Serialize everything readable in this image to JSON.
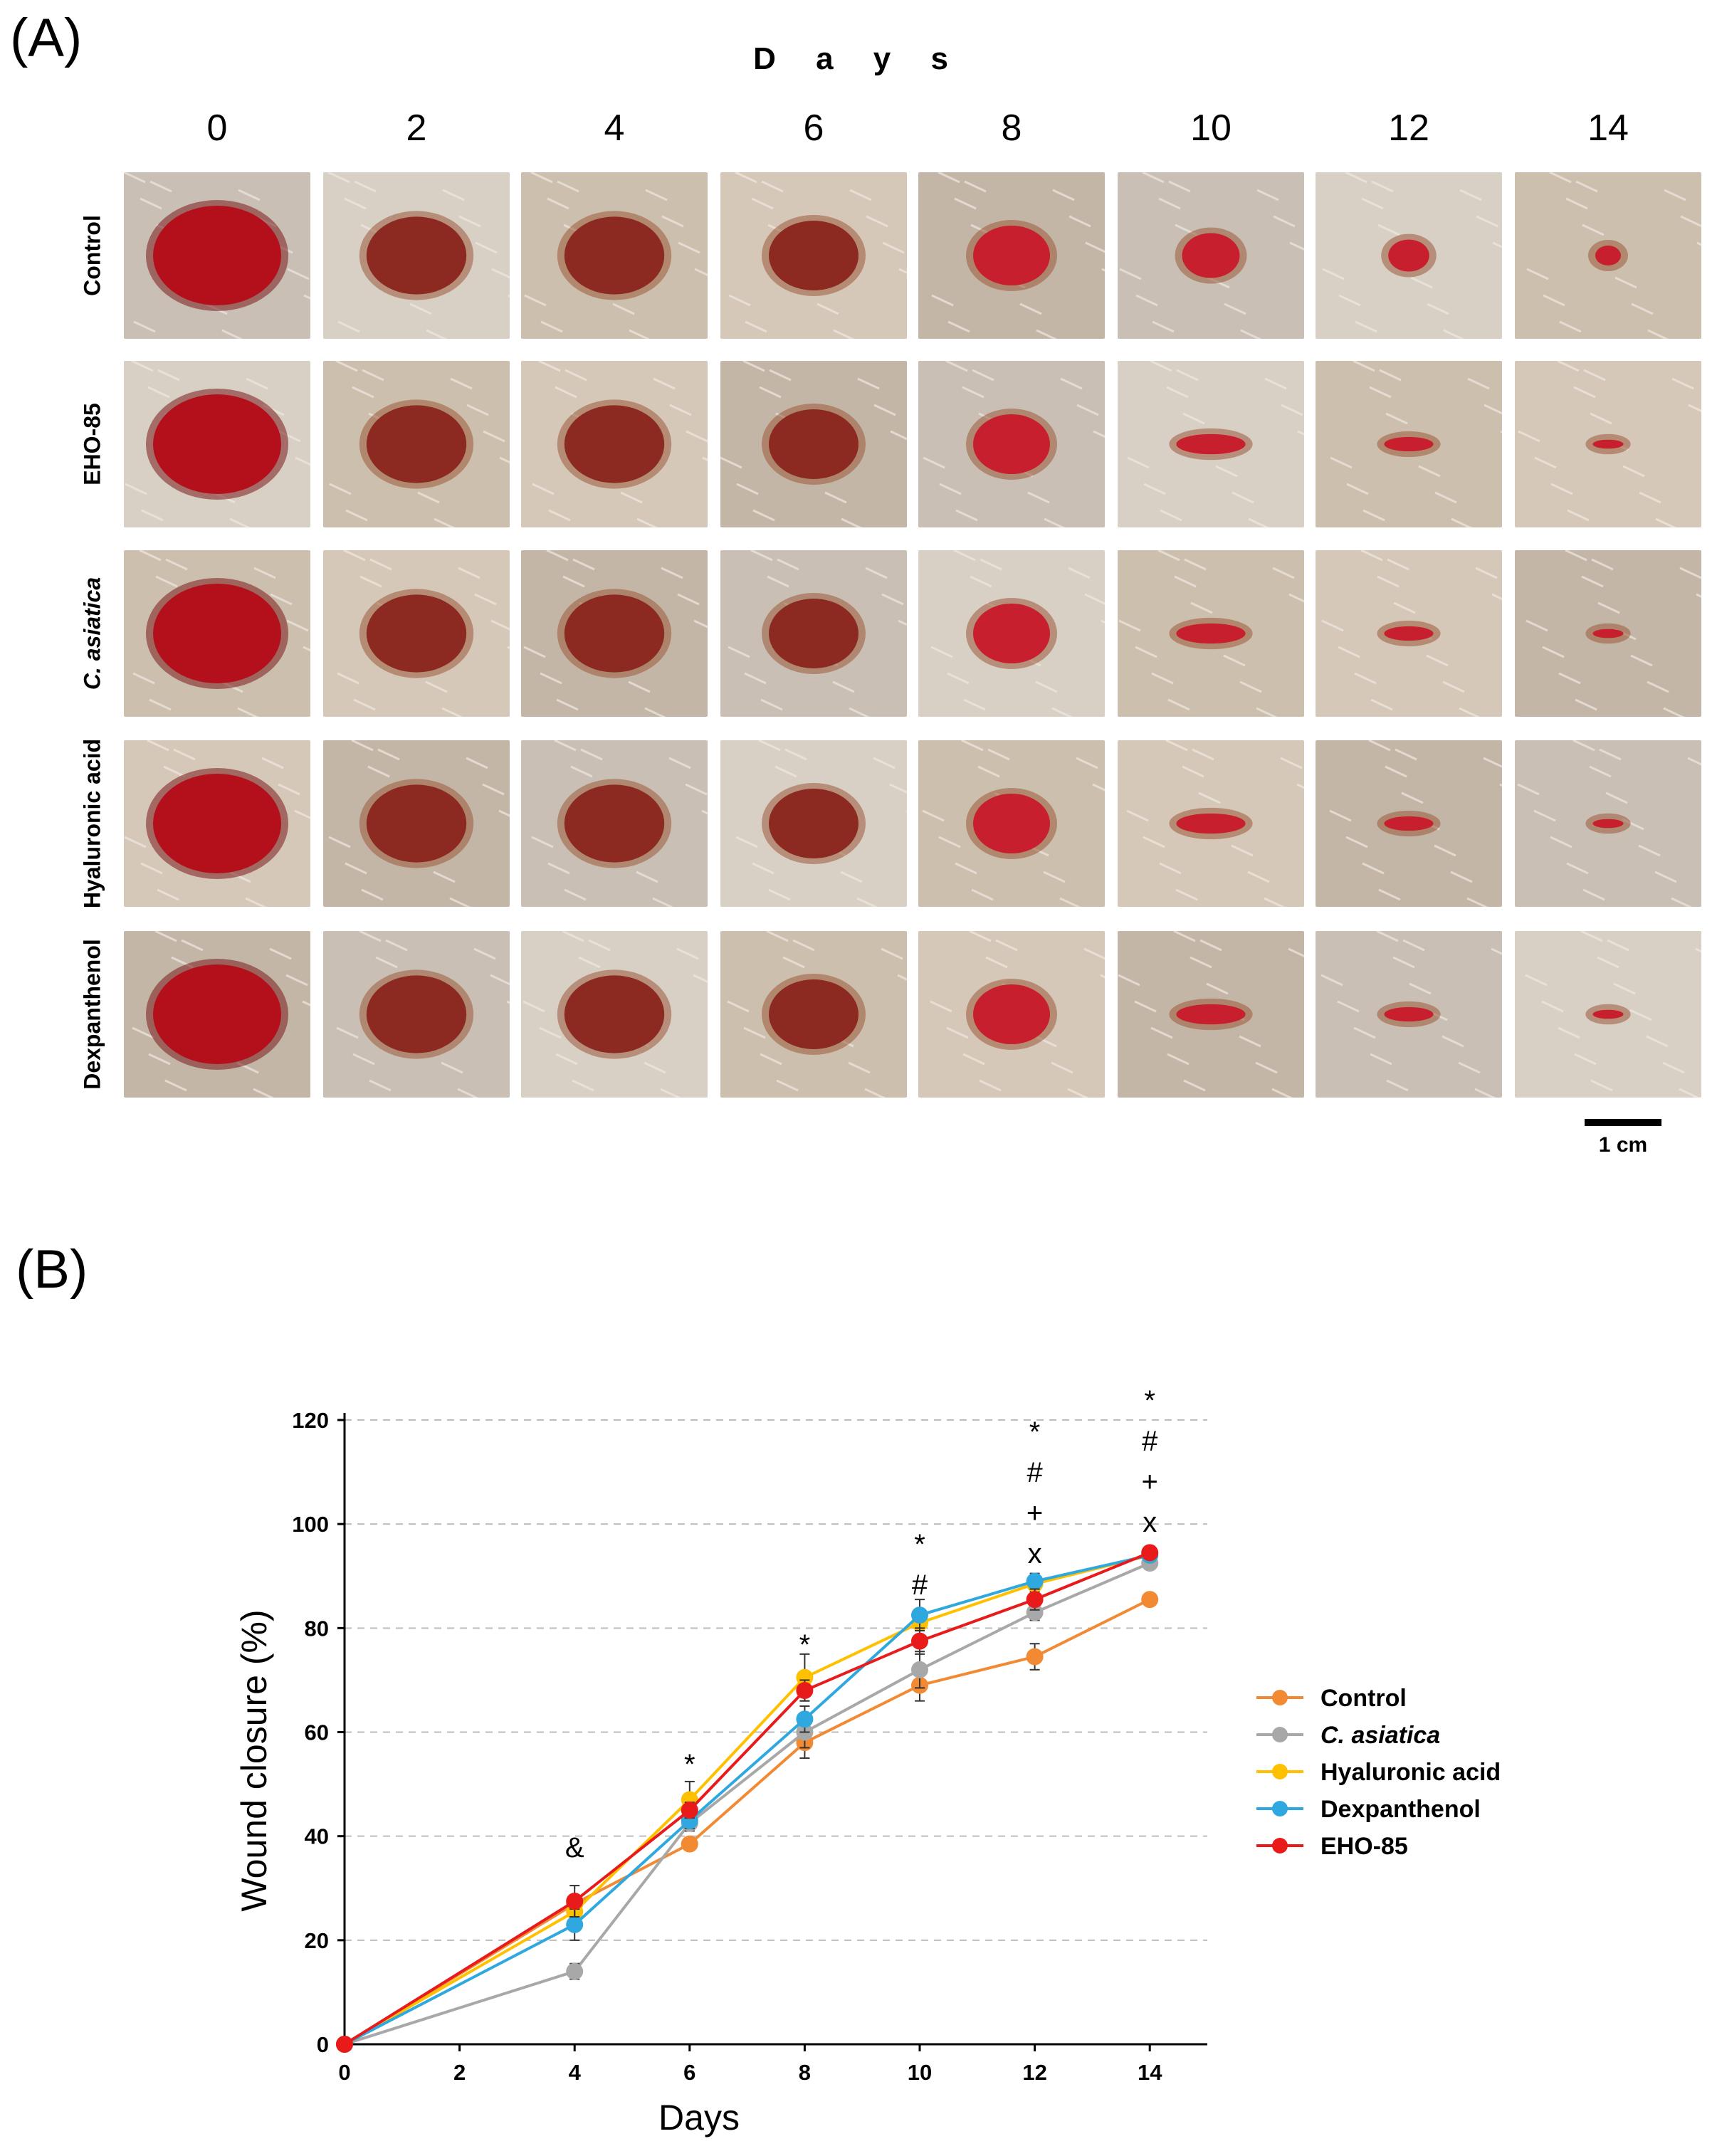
{
  "panel_a": {
    "label": "(A)",
    "days_title": "D a y s",
    "days": [
      "0",
      "2",
      "4",
      "6",
      "8",
      "10",
      "12",
      "14"
    ],
    "rows": [
      "Control",
      "EHO-85",
      "C. asiatica",
      "Hyaluronic acid",
      "Dexpanthenol"
    ],
    "scale_bar_label": "1 cm"
  },
  "panel_b": {
    "label": "(B)"
  },
  "colors": {
    "Control": "#f28a34",
    "C. asiatica": "#a8a8a8",
    "Hyaluronic acid": "#ffc000",
    "Dexpanthenol": "#2ea8de",
    "EHO-85": "#e81a1a"
  },
  "chart_data": {
    "type": "line",
    "xlabel": "Days",
    "ylabel": "Wound closure (%)",
    "x": [
      0,
      4,
      6,
      8,
      10,
      12,
      14
    ],
    "xticks": [
      "0",
      "2",
      "4",
      "6",
      "8",
      "10",
      "12",
      "14"
    ],
    "yticks": [
      "0",
      "20",
      "40",
      "60",
      "80",
      "100",
      "120"
    ],
    "xlim": [
      0,
      15
    ],
    "ylim": [
      0,
      120
    ],
    "grid": "horizontal dashed",
    "legend_position": "right",
    "series": [
      {
        "name": "Control",
        "values": [
          0,
          27,
          38.5,
          58,
          69,
          74.5,
          85.5
        ],
        "errors": [
          0,
          1.5,
          1,
          3,
          3,
          2.5,
          1
        ]
      },
      {
        "name": "C. asiatica",
        "values": [
          0,
          14,
          42.5,
          60,
          72,
          83,
          92.5
        ],
        "errors": [
          0,
          1.5,
          1.5,
          3,
          3.5,
          1.5,
          1
        ]
      },
      {
        "name": "Hyaluronic acid",
        "values": [
          0,
          25.5,
          47,
          70.5,
          81,
          88.5,
          94
        ],
        "errors": [
          0,
          1.5,
          3.5,
          4.5,
          2.5,
          1.5,
          1
        ]
      },
      {
        "name": "Dexpanthenol",
        "values": [
          0,
          23,
          43,
          62.5,
          82.5,
          89,
          94
        ],
        "errors": [
          0,
          3,
          1.5,
          2.5,
          3,
          1.5,
          1
        ]
      },
      {
        "name": "EHO-85",
        "values": [
          0,
          27.5,
          45,
          68,
          77.5,
          85.5,
          94.5
        ],
        "errors": [
          0,
          3,
          1.5,
          2,
          2.5,
          2,
          1
        ]
      }
    ],
    "legend": [
      "Control",
      "C. asiatica",
      "Hyaluronic acid",
      "Dexpanthenol",
      "EHO-85"
    ],
    "annotations": [
      {
        "x": 4,
        "labels": [
          "&"
        ]
      },
      {
        "x": 6,
        "labels": [
          "*"
        ]
      },
      {
        "x": 8,
        "labels": [
          "*"
        ]
      },
      {
        "x": 10,
        "labels": [
          "*",
          "#"
        ]
      },
      {
        "x": 12,
        "labels": [
          "*",
          "#",
          "+",
          "x"
        ]
      },
      {
        "x": 14,
        "labels": [
          "*",
          "#",
          "+",
          "x"
        ]
      }
    ]
  }
}
